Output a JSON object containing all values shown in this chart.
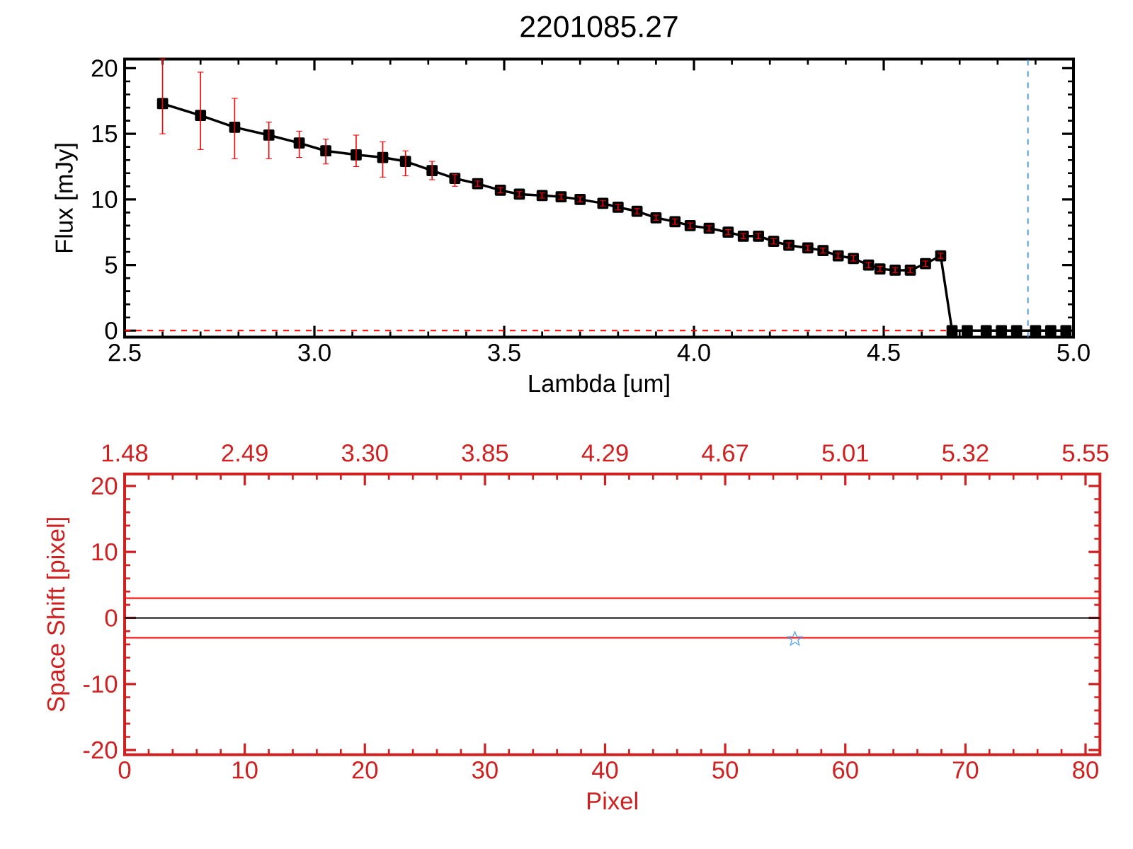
{
  "chart_data": [
    {
      "type": "line",
      "title": "2201085.27",
      "xlabel": "Lambda [um]",
      "ylabel": "Flux [mJy]",
      "color": "#000000",
      "marker": "square",
      "x": [
        2.6,
        2.7,
        2.79,
        2.88,
        2.96,
        3.03,
        3.11,
        3.18,
        3.24,
        3.31,
        3.37,
        3.43,
        3.49,
        3.54,
        3.6,
        3.65,
        3.7,
        3.76,
        3.8,
        3.85,
        3.9,
        3.95,
        3.99,
        4.04,
        4.09,
        4.13,
        4.17,
        4.21,
        4.25,
        4.3,
        4.34,
        4.38,
        4.42,
        4.46,
        4.49,
        4.53,
        4.57,
        4.61,
        4.65,
        4.68,
        4.72,
        4.77,
        4.81,
        4.85,
        4.9,
        4.94,
        4.98
      ],
      "values": [
        17.3,
        16.4,
        15.5,
        14.9,
        14.3,
        13.7,
        13.4,
        13.2,
        12.9,
        12.2,
        11.6,
        11.2,
        10.7,
        10.4,
        10.3,
        10.2,
        10.0,
        9.7,
        9.4,
        9.1,
        8.6,
        8.3,
        8.0,
        7.8,
        7.5,
        7.2,
        7.2,
        6.8,
        6.5,
        6.3,
        6.1,
        5.7,
        5.5,
        5.0,
        4.7,
        4.6,
        4.6,
        5.1,
        5.7,
        0,
        0,
        0,
        0,
        0,
        0,
        0,
        0
      ],
      "errors": [
        [
          15.0,
          20.7
        ],
        [
          13.8,
          19.7
        ],
        [
          13.1,
          17.7
        ],
        [
          13.1,
          15.9
        ],
        [
          13.2,
          15.2
        ],
        [
          12.7,
          14.6
        ],
        [
          12.5,
          14.9
        ],
        [
          11.7,
          14.4
        ],
        [
          11.8,
          13.7
        ],
        [
          11.5,
          12.9
        ],
        [
          11.0,
          11.9
        ],
        0.2,
        0.2,
        0.2,
        0.2,
        0.2,
        0.2,
        0.2,
        0.2,
        0.2,
        0.2,
        0.2,
        0.2,
        0.2,
        0.2,
        0.2,
        0.2,
        0.2,
        0.2,
        0.2,
        0.2,
        0.2,
        0.2,
        0.2,
        0.2,
        0.2,
        0.2,
        0.2,
        0.2,
        null,
        null,
        null,
        null,
        null,
        null,
        null,
        null
      ],
      "xlim": [
        2.5,
        5.0
      ],
      "ylim": [
        -0.5,
        20.7
      ],
      "xticks": [
        {
          "value": 2.5,
          "label": "2.5"
        },
        {
          "value": 3.0,
          "label": "3.0"
        },
        {
          "value": 3.5,
          "label": "3.5"
        },
        {
          "value": 4.0,
          "label": "4.0"
        },
        {
          "value": 4.5,
          "label": "4.5"
        },
        {
          "value": 5.0,
          "label": "5.0"
        }
      ],
      "yticks": [
        0,
        5,
        10,
        15,
        20
      ],
      "ref_lines": [
        {
          "axis": "y",
          "value": 0,
          "color": "#ff0000",
          "line_style": "dashed"
        },
        {
          "axis": "x",
          "value": 4.88,
          "color": "#4a90d9",
          "line_style": "dashed"
        }
      ]
    },
    {
      "type": "scatter",
      "xlabel": "Pixel",
      "ylabel": "Space Shift [pixel]",
      "marker": "star",
      "series": [
        {
          "color": "#3399ff",
          "x": [
            55.8
          ],
          "values": [
            -3.2
          ]
        }
      ],
      "xlim": [
        0,
        81.2
      ],
      "ylim": [
        -20.7,
        21.8
      ],
      "xticks": [
        0,
        10,
        20,
        30,
        40,
        50,
        60,
        70,
        80
      ],
      "yticks": [
        -20,
        -10,
        0,
        10,
        20
      ],
      "annotations": [
        "1.48",
        "2.49",
        "3.30",
        "3.85",
        "4.29",
        "4.67",
        "5.01",
        "5.32",
        "5.55"
      ],
      "ref_lines": [
        {
          "axis": "y",
          "value": 3,
          "color": "#ff0000"
        },
        {
          "axis": "y",
          "value": -3,
          "color": "#ff0000"
        },
        {
          "axis": "y",
          "value": 0,
          "color": "#000000"
        }
      ]
    }
  ]
}
